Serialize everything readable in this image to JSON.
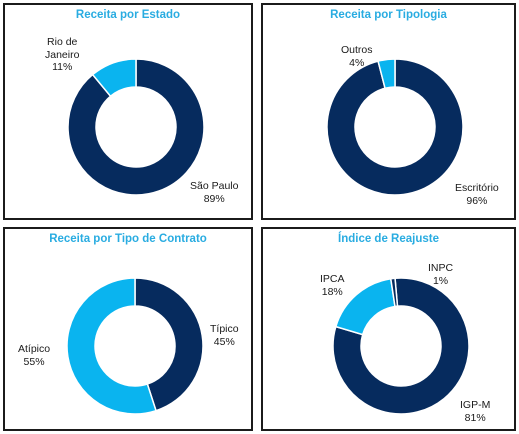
{
  "colors": {
    "dark": "#062b5e",
    "light": "#0ab4ef",
    "title": "#29ace1"
  },
  "chart_data": [
    {
      "type": "pie",
      "title": "Receita por Estado",
      "slices": [
        {
          "label": "São Paulo",
          "value": 89,
          "value_label": "89%",
          "color": "#062b5e"
        },
        {
          "label": "Rio de Janeiro",
          "label_lines": [
            "Rio de",
            "Janeiro"
          ],
          "value": 11,
          "value_label": "11%",
          "color": "#0ab4ef"
        }
      ]
    },
    {
      "type": "pie",
      "title": "Receita por Tipologia",
      "slices": [
        {
          "label": "Escritório",
          "value": 96,
          "value_label": "96%",
          "color": "#062b5e"
        },
        {
          "label": "Outros",
          "value": 4,
          "value_label": "4%",
          "color": "#0ab4ef"
        }
      ]
    },
    {
      "type": "pie",
      "title": "Receita por Tipo de Contrato",
      "slices": [
        {
          "label": "Típico",
          "value": 45,
          "value_label": "45%",
          "color": "#062b5e"
        },
        {
          "label": "Atípico",
          "value": 55,
          "value_label": "55%",
          "color": "#0ab4ef"
        }
      ]
    },
    {
      "type": "pie",
      "title": "Índice de Reajuste",
      "slices": [
        {
          "label": "IGP-M",
          "value": 81,
          "value_label": "81%",
          "color": "#062b5e"
        },
        {
          "label": "IPCA",
          "value": 18,
          "value_label": "18%",
          "color": "#0ab4ef"
        },
        {
          "label": "INPC",
          "value": 1,
          "value_label": "1%",
          "color": "#062b5e"
        }
      ]
    }
  ]
}
